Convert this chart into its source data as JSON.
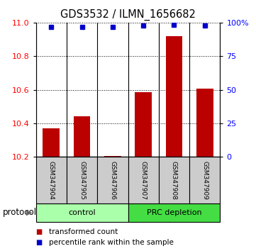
{
  "title": "GDS3532 / ILMN_1656682",
  "samples": [
    "GSM347904",
    "GSM347905",
    "GSM347906",
    "GSM347907",
    "GSM347908",
    "GSM347909"
  ],
  "red_values": [
    10.37,
    10.44,
    10.205,
    10.585,
    10.92,
    10.605
  ],
  "blue_values": [
    97,
    97,
    97,
    98,
    98.5,
    98
  ],
  "ylim_left": [
    10.2,
    11.0
  ],
  "ylim_right": [
    0,
    100
  ],
  "yticks_left": [
    10.2,
    10.4,
    10.6,
    10.8,
    11.0
  ],
  "yticks_right": [
    0,
    25,
    50,
    75,
    100
  ],
  "ytick_labels_right": [
    "0",
    "25",
    "50",
    "75",
    "100%"
  ],
  "groups": [
    {
      "label": "control",
      "n_samples": 3,
      "color": "#aaffaa"
    },
    {
      "label": "PRC depletion",
      "n_samples": 3,
      "color": "#44dd44"
    }
  ],
  "group_label": "protocol",
  "bar_color": "#BB0000",
  "dot_color": "#0000CC",
  "legend_red": "transformed count",
  "legend_blue": "percentile rank within the sample",
  "title_fontsize": 10.5,
  "tick_fontsize": 8,
  "sample_fontsize": 6.5,
  "group_fontsize": 8,
  "legend_fontsize": 7.5
}
